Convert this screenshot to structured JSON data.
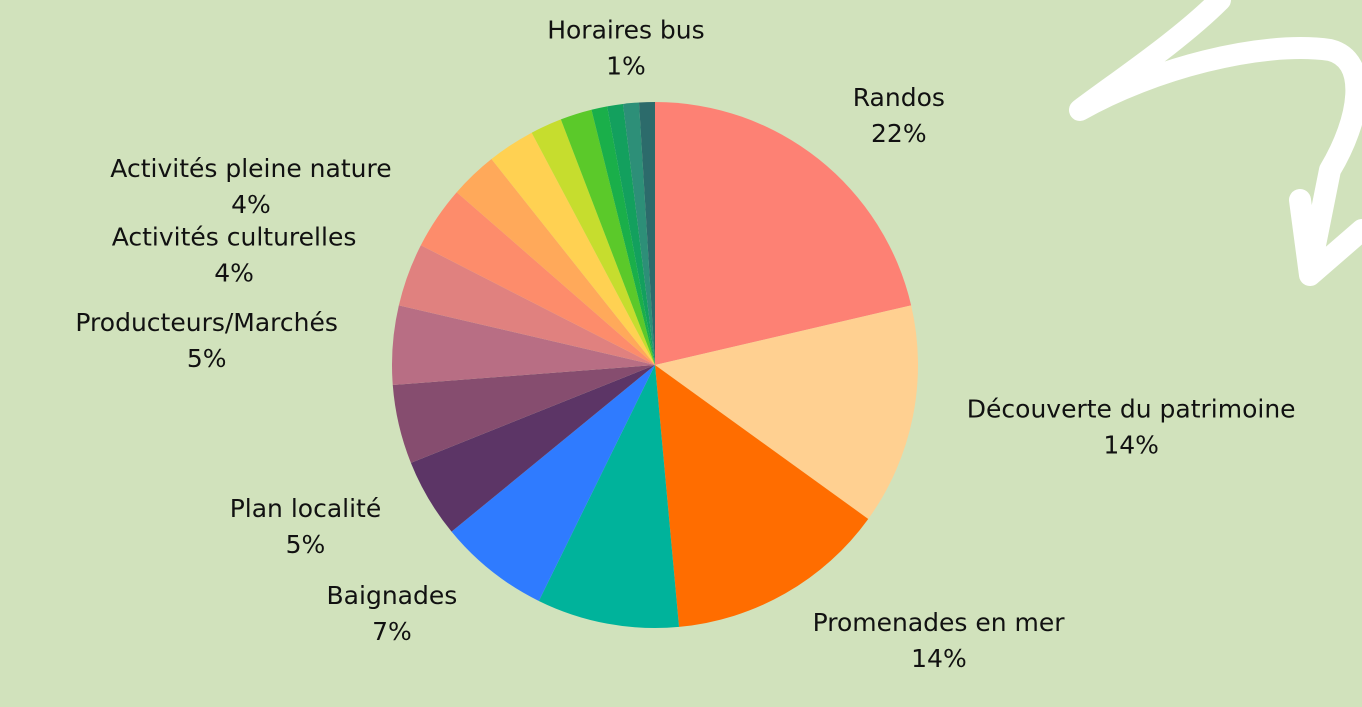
{
  "chart_data": {
    "type": "pie",
    "categories": [
      "Randos",
      "Découverte du patrimoine",
      "Promenades en mer",
      null,
      "Baignades",
      "Plan localité",
      null,
      "Producteurs/Marchés",
      "Activités culturelles",
      "Activités pleine nature",
      null,
      null,
      null,
      null,
      null,
      null,
      "Horaires bus",
      null
    ],
    "values": [
      22,
      14,
      14,
      9,
      7,
      5,
      5,
      5,
      4,
      4,
      3,
      3,
      2,
      2,
      1,
      1,
      1,
      1
    ],
    "value_labels": [
      "22%",
      "14%",
      "14%",
      null,
      "7%",
      "5%",
      null,
      "5%",
      "4%",
      "4%",
      null,
      null,
      null,
      null,
      null,
      null,
      "1%",
      null
    ],
    "colors": [
      "#fd8174",
      "#ffd091",
      "#ff6d00",
      "#00b39b",
      "#2f7bff",
      "#5c3566",
      "#864d6f",
      "#b86e84",
      "#e0817f",
      "#fd8c6b",
      "#ffa95a",
      "#ffd152",
      "#c6dd2e",
      "#5bc92a",
      "#1aaf4a",
      "#13a05e",
      "#2d8f78",
      "#2c6b6b"
    ]
  }
}
